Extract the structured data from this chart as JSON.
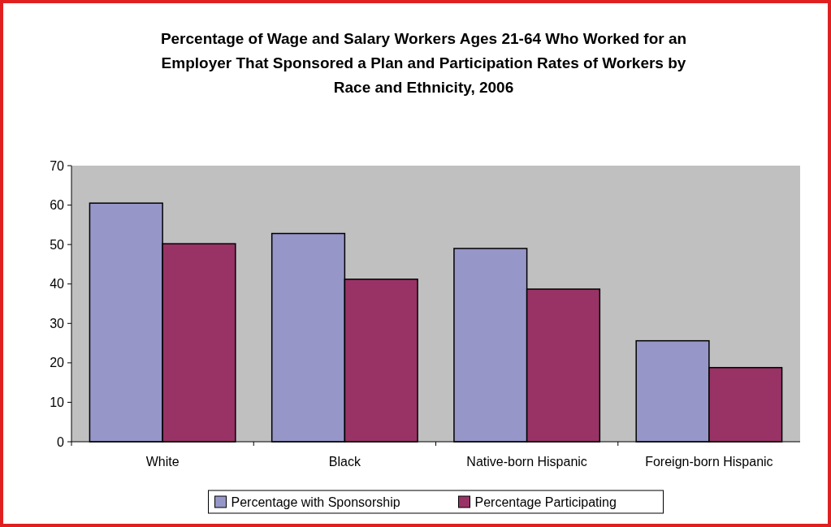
{
  "chart_data": {
    "type": "bar",
    "title": "Percentage of Wage and Salary Workers Ages 21-64 Who Worked for an Employer That Sponsored a Plan and Participation Rates of Workers by Race and Ethnicity, 2006",
    "categories": [
      "White",
      "Black",
      "Native-born Hispanic",
      "Foreign-born Hispanic"
    ],
    "series": [
      {
        "name": "Percentage with Sponsorship",
        "color": "#9696c8",
        "values": [
          60.5,
          52.8,
          49,
          25.6
        ]
      },
      {
        "name": "Percentage Participating",
        "color": "#993366",
        "values": [
          50.2,
          41.2,
          38.7,
          18.8
        ]
      }
    ],
    "ylim": [
      0,
      70
    ],
    "yticks": [
      0,
      10,
      20,
      30,
      40,
      50,
      60,
      70
    ],
    "legend": "bottom"
  }
}
